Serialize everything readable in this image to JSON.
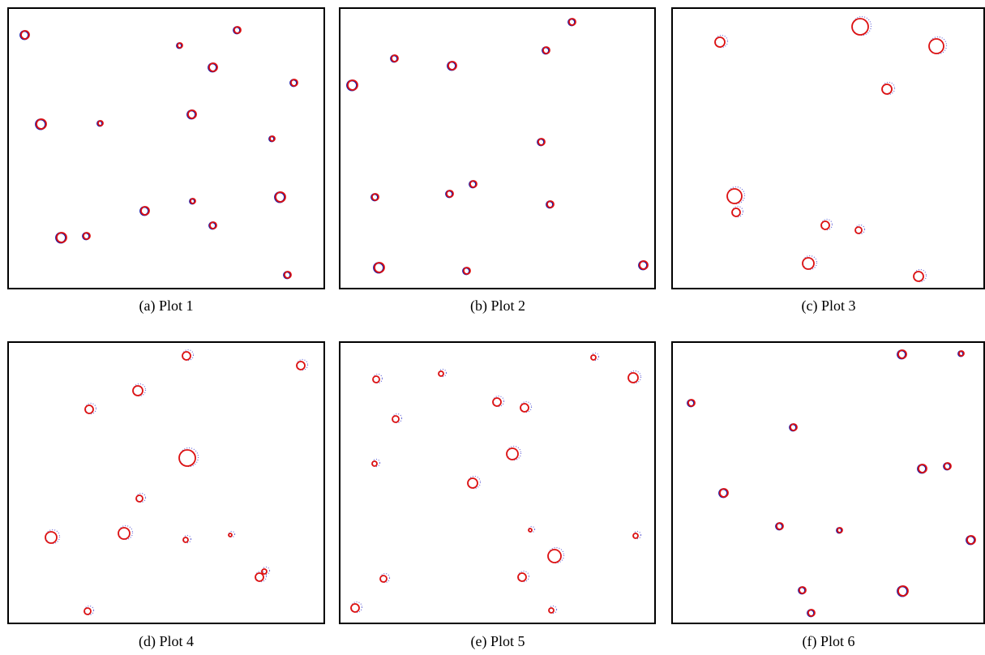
{
  "panels": [
    {
      "caption": "(a) Plot 1"
    },
    {
      "caption": "(b) Plot 2"
    },
    {
      "caption": "(c) Plot 3"
    },
    {
      "caption": "(d) Plot 4"
    },
    {
      "caption": "(e) Plot 5"
    },
    {
      "caption": "(f) Plot 6"
    }
  ]
}
